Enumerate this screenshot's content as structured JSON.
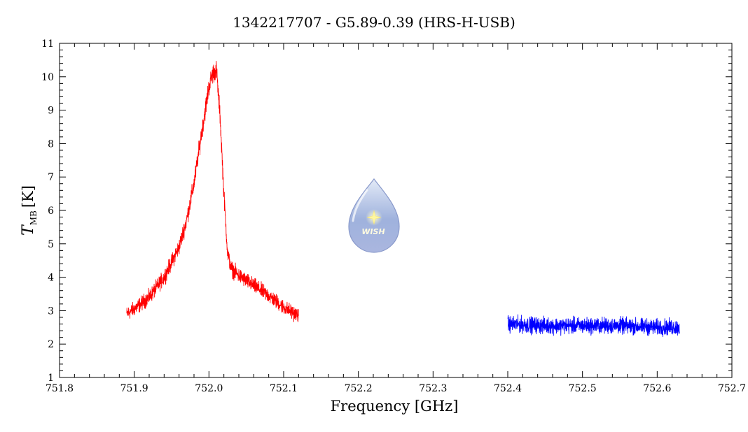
{
  "chart_data": {
    "type": "line",
    "title": "1342217707 - G5.89-0.39 (HRS-H-USB)",
    "xlabel": "Frequency [GHz]",
    "ylabel": {
      "symbol": "T",
      "subscript": "MB",
      "unit": "[K]"
    },
    "xlim": [
      751.8,
      752.7
    ],
    "ylim": [
      1,
      11
    ],
    "xticks": [
      "751.8",
      "751.9",
      "752.0",
      "752.1",
      "752.2",
      "752.3",
      "752.4",
      "752.5",
      "752.6",
      "752.7"
    ],
    "yticks": [
      "1",
      "2",
      "3",
      "4",
      "5",
      "6",
      "7",
      "8",
      "9",
      "10",
      "11"
    ],
    "grid": false,
    "series": [
      {
        "color": "#ff0000",
        "x": [
          751.89,
          751.9,
          751.92,
          751.94,
          751.96,
          751.97,
          751.98,
          751.99,
          752.0,
          752.005,
          752.01,
          752.015,
          752.02,
          752.025,
          752.03,
          752.04,
          752.06,
          752.08,
          752.1,
          752.12
        ],
        "y": [
          2.9,
          3.05,
          3.4,
          4.0,
          4.9,
          5.7,
          6.8,
          8.3,
          9.7,
          10.1,
          10.2,
          8.8,
          6.5,
          4.7,
          4.25,
          4.05,
          3.75,
          3.45,
          3.1,
          2.85
        ],
        "noise": 0.15
      },
      {
        "color": "#0000ff",
        "x": [
          752.4,
          752.45,
          752.5,
          752.55,
          752.6,
          752.63
        ],
        "y": [
          2.6,
          2.55,
          2.55,
          2.55,
          2.5,
          2.5
        ],
        "noise": 0.17
      }
    ]
  },
  "logo": {
    "text": "WISH",
    "icon": "droplet-star-icon"
  }
}
